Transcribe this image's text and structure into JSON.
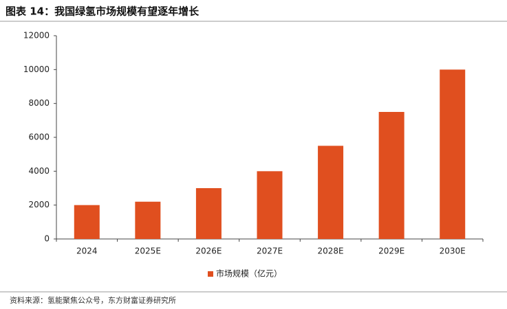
{
  "chart_data": {
    "type": "bar",
    "title": "图表 14：我国绿氢市场规模有望逐年增长",
    "source": "资料来源：氢能聚焦公众号，东方财富证券研究所",
    "categories": [
      "2024",
      "2025E",
      "2026E",
      "2027E",
      "2028E",
      "2029E",
      "2030E"
    ],
    "series": [
      {
        "name": "市场规模（亿元）",
        "color": "#e04f1f",
        "values": [
          2000,
          2200,
          3000,
          4000,
          5500,
          7500,
          10000
        ]
      }
    ],
    "ylim": [
      0,
      12000
    ],
    "yticks": [
      0,
      2000,
      4000,
      6000,
      8000,
      10000,
      12000
    ],
    "grid": false,
    "legend": "bottom"
  }
}
